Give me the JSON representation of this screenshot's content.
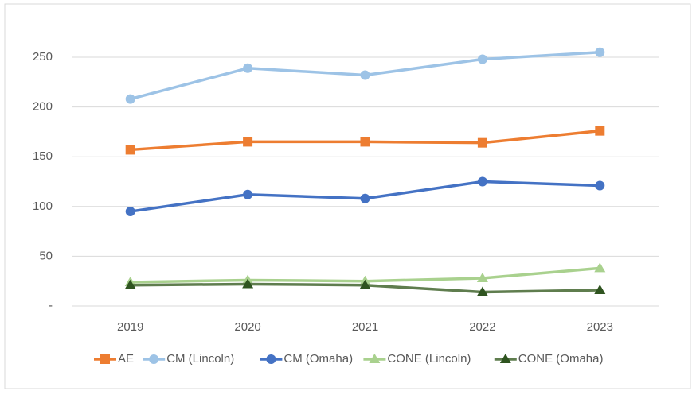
{
  "chart_data": {
    "type": "line",
    "categories": [
      "2019",
      "2020",
      "2021",
      "2022",
      "2023"
    ],
    "series": [
      {
        "name": "AE",
        "color": "#ed7d31",
        "marker": "square",
        "values": [
          157,
          165,
          165,
          164,
          176
        ]
      },
      {
        "name": "CM (Lincoln)",
        "color": "#9dc3e6",
        "marker": "circle",
        "values": [
          208,
          239,
          232,
          248,
          255
        ]
      },
      {
        "name": "CM (Omaha)",
        "color": "#4472c4",
        "marker": "circle",
        "values": [
          95,
          112,
          108,
          125,
          121
        ]
      },
      {
        "name": "CONE (Lincoln)",
        "color": "#a9d18e",
        "marker": "triangle",
        "values": [
          24,
          26,
          25,
          28,
          38
        ]
      },
      {
        "name": "CONE (Omaha)",
        "color": "#5f7d4e",
        "marker": "triangle",
        "values": [
          21,
          22,
          21,
          14,
          16
        ]
      }
    ],
    "ylim": [
      0,
      280
    ],
    "yticks": [
      {
        "value": 0,
        "label": "-"
      },
      50,
      100,
      150,
      200,
      250
    ],
    "grid": true,
    "legend": "bottom"
  }
}
